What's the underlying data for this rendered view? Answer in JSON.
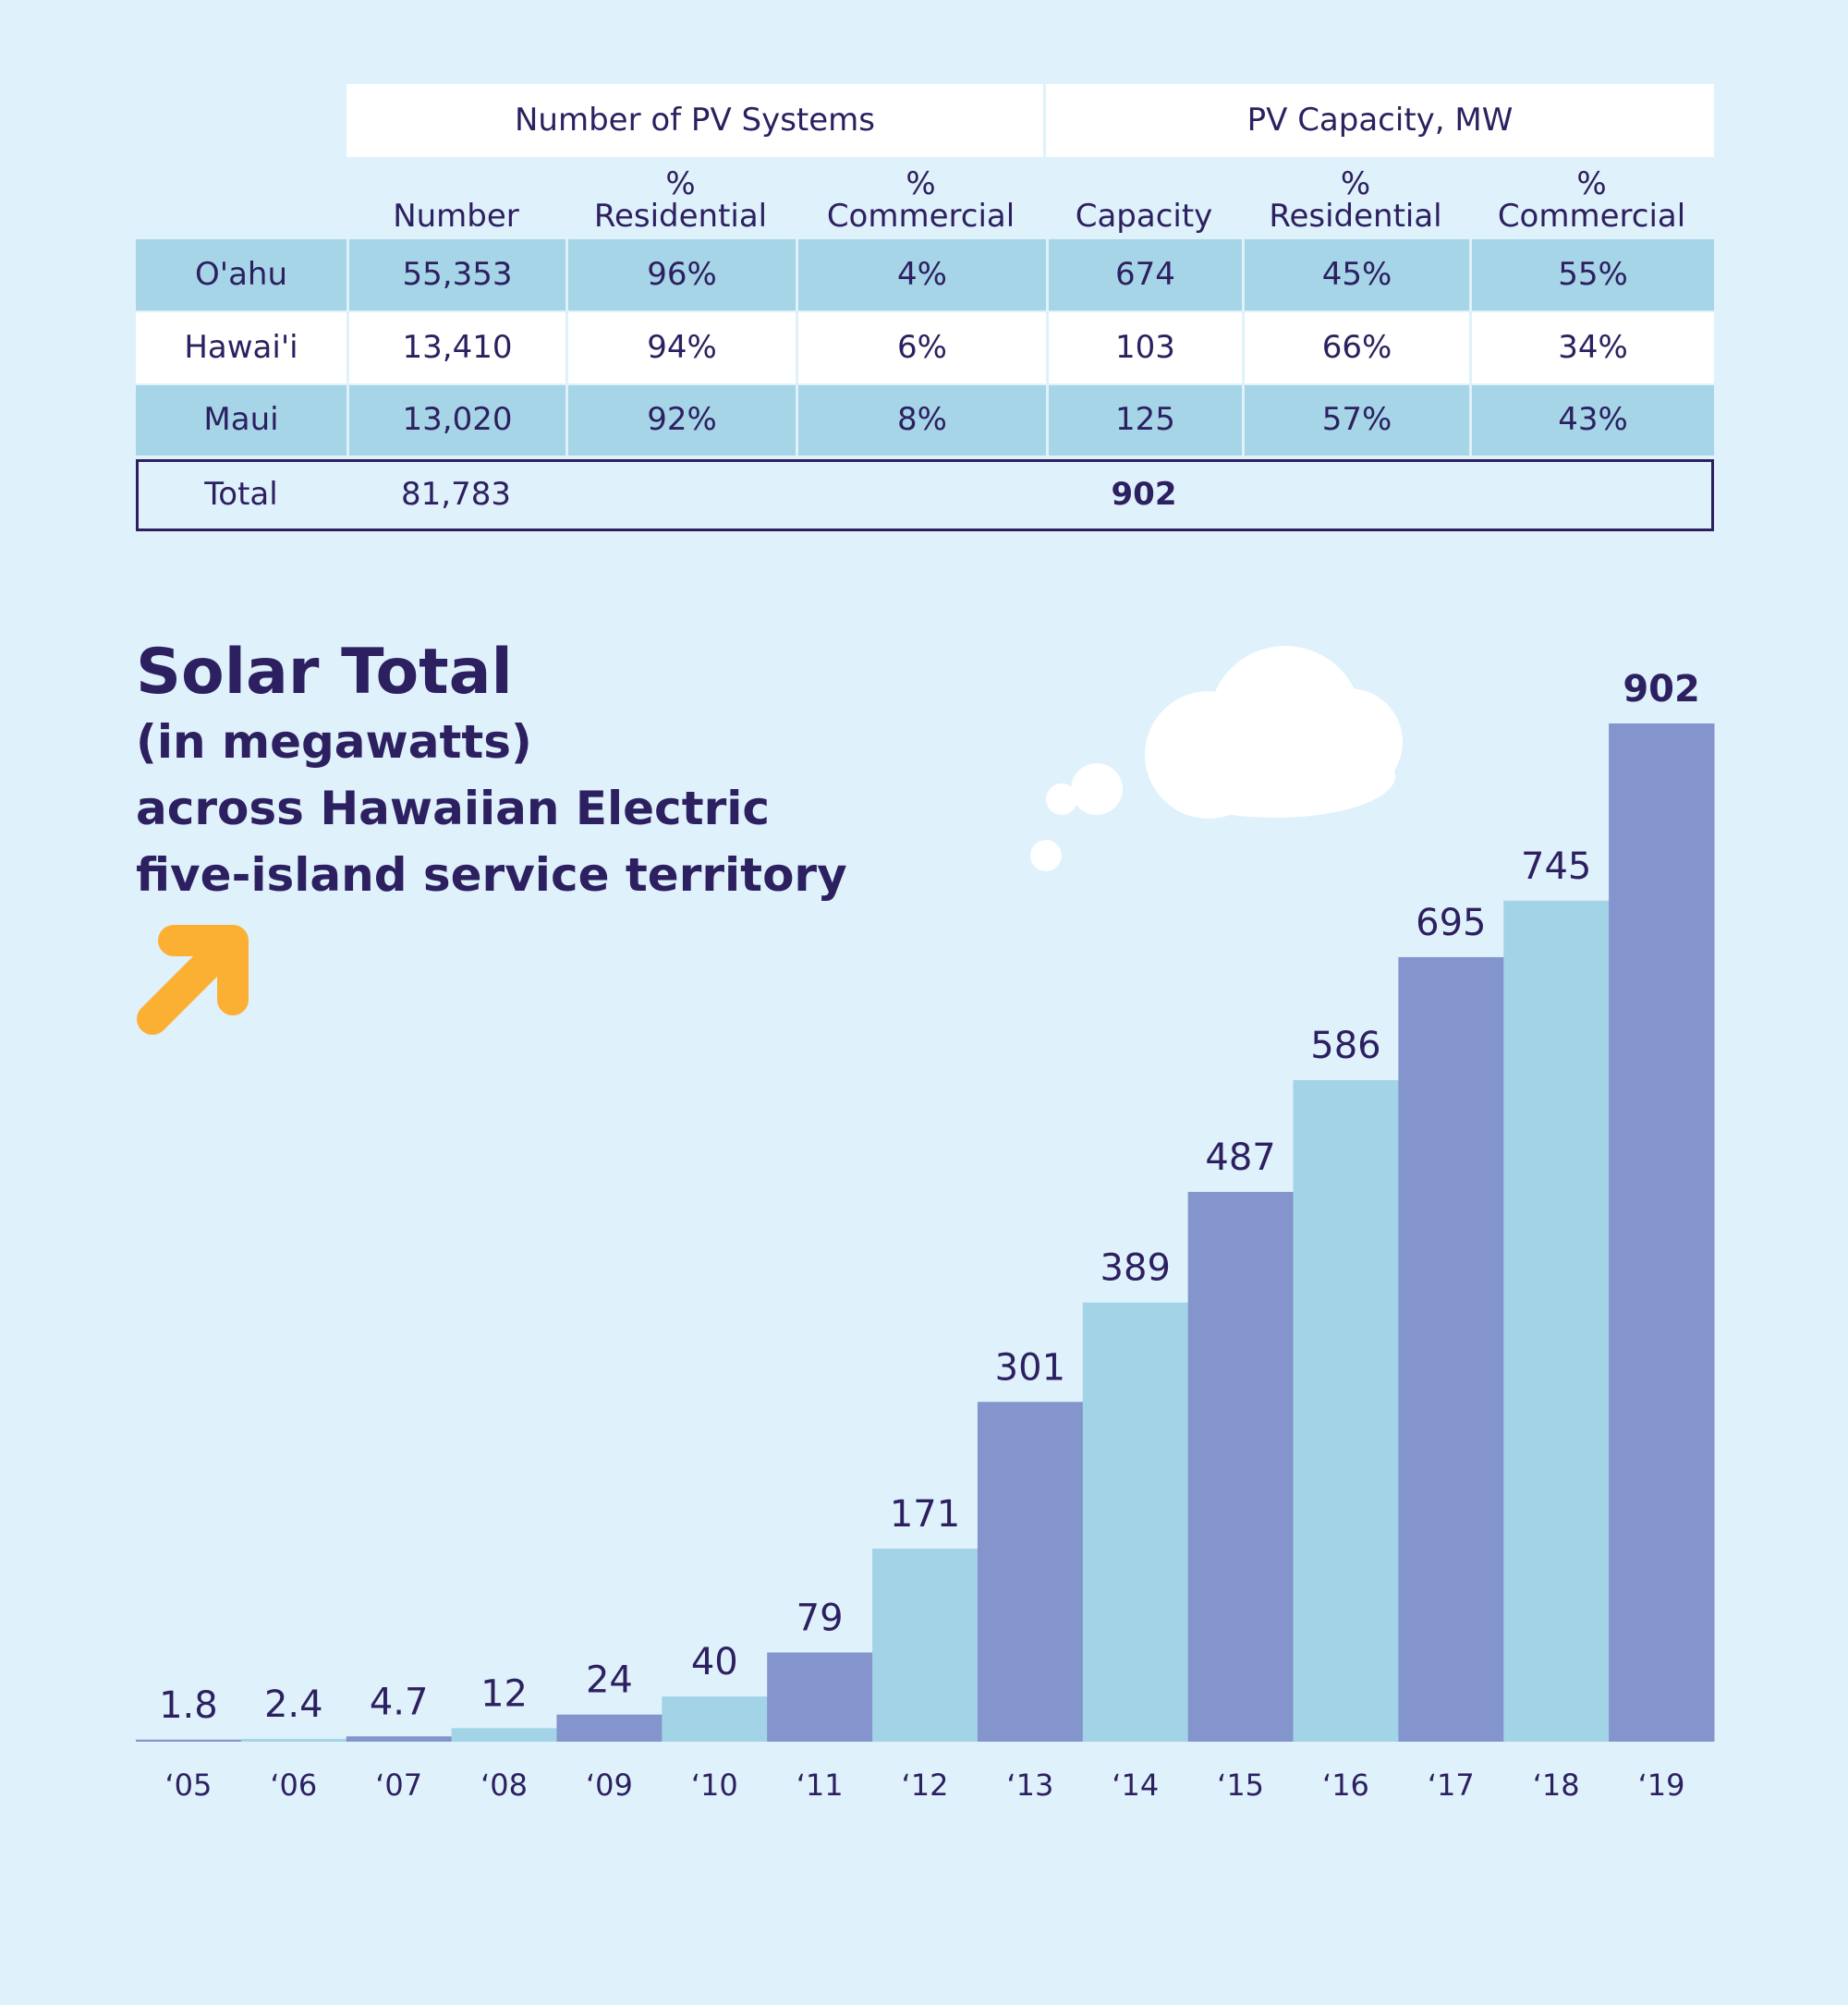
{
  "table": {
    "groups": [
      "Number of PV Systems",
      "PV Capacity, MW"
    ],
    "columns": [
      "Number",
      "%\nResidential",
      "%\nCommercial",
      "Capacity",
      "%\nResidential",
      "%\nCommercial"
    ],
    "rows": [
      [
        "O'ahu",
        "55,353",
        "96%",
        "4%",
        "674",
        "45%",
        "55%"
      ],
      [
        "Hawai'i",
        "13,410",
        "94%",
        "6%",
        "103",
        "66%",
        "34%"
      ],
      [
        "Maui",
        "13,020",
        "92%",
        "8%",
        "125",
        "57%",
        "43%"
      ]
    ],
    "total": [
      "Total",
      "81,783",
      "902"
    ]
  },
  "chart_data": {
    "type": "bar",
    "title": "Solar Total",
    "subtitle": [
      "(in megawatts)",
      "across Hawaiian Electric",
      "five-island service territory"
    ],
    "categories": [
      "‘05",
      "‘06",
      "‘07",
      "‘08",
      "‘09",
      "‘10",
      "‘11",
      "‘12",
      "‘13",
      "‘14",
      "‘15",
      "‘16",
      "‘17",
      "‘18",
      "‘19"
    ],
    "values": [
      1.8,
      2.4,
      4.7,
      12,
      24,
      40,
      79,
      171,
      301,
      389,
      487,
      586,
      695,
      745,
      902
    ],
    "colors": [
      "#8494cc",
      "#a3d3e6",
      "#8494cc",
      "#a3d3e6",
      "#8494cc",
      "#a3d3e6",
      "#8494cc",
      "#a3d3e6",
      "#8494cc",
      "#a3d3e6",
      "#8494cc",
      "#a3d3e6",
      "#8494cc",
      "#a3d3e6",
      "#8494cc"
    ]
  }
}
